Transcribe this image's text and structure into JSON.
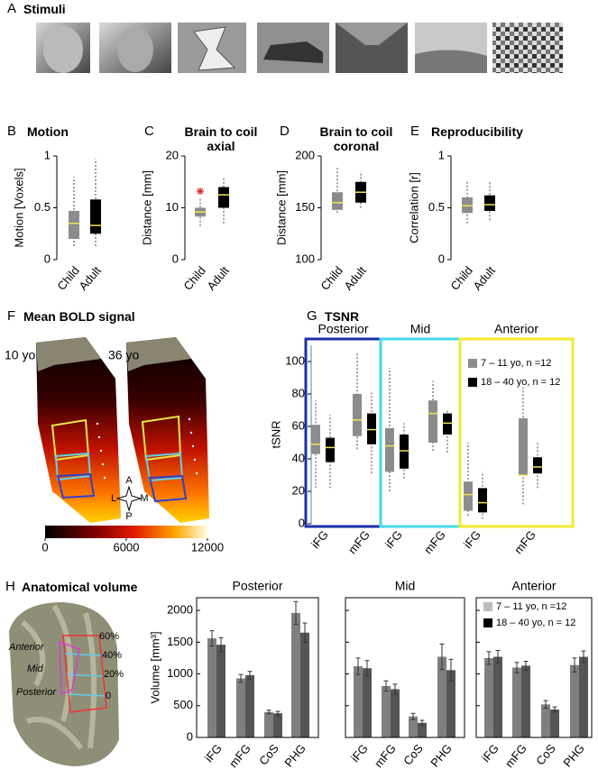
{
  "figure_panels": [
    {
      "letter": "A",
      "title": "Stimuli"
    },
    {
      "letter": "F",
      "title": "Mean BOLD signal",
      "brain_labels": [
        "10 yo",
        "36 yo"
      ],
      "compass": [
        "A",
        "L",
        "M",
        "P"
      ],
      "colorbar": {
        "lim": [
          0,
          12000
        ],
        "ticks": [
          0,
          6000,
          12000
        ]
      }
    },
    {
      "letter": "H",
      "title": "Anatomical volume",
      "region_labels": [
        "Anterior",
        "Mid",
        "Posterior"
      ],
      "level_labels": [
        "60%",
        "40%",
        "20%",
        "0"
      ]
    }
  ],
  "chart_data": [
    {
      "type": "box",
      "panel": "B",
      "title": "Motion",
      "ylabel": "Motion [Voxels]",
      "categories": [
        "Child",
        "Adult"
      ],
      "colors": [
        "#8c8c8c",
        "#000000"
      ],
      "median_color": "#f2e34a",
      "ylim": [
        0,
        1
      ],
      "yticks": [
        0,
        0.5,
        1
      ],
      "values": [
        {
          "low": 0.13,
          "q1": 0.2,
          "median": 0.35,
          "q3": 0.47,
          "high": 0.8
        },
        {
          "low": 0.13,
          "q1": 0.25,
          "median": 0.33,
          "q3": 0.58,
          "high": 0.97
        }
      ]
    },
    {
      "type": "box",
      "panel": "C",
      "title": "Brain to coil axial",
      "ylabel": "Distance [mm]",
      "categories": [
        "Child",
        "Adult"
      ],
      "colors": [
        "#8c8c8c",
        "#000000"
      ],
      "median_color": "#f2e34a",
      "outlier_color": "#d62728",
      "ylim": [
        0,
        20
      ],
      "yticks": [
        0,
        10,
        20
      ],
      "values": [
        {
          "low": 6.5,
          "q1": 8.3,
          "median": 9.2,
          "q3": 10,
          "high": 12
        },
        {
          "low": 7,
          "q1": 10,
          "median": 12.5,
          "q3": 14,
          "high": 16
        }
      ],
      "outliers": [
        [
          13.2
        ],
        []
      ]
    },
    {
      "type": "box",
      "panel": "D",
      "title": "Brain to coil coronal",
      "ylabel": "Distance [mm]",
      "categories": [
        "Child",
        "Adult"
      ],
      "colors": [
        "#8c8c8c",
        "#000000"
      ],
      "median_color": "#f2e34a",
      "ylim": [
        100,
        200
      ],
      "yticks": [
        100,
        150,
        200
      ],
      "values": [
        {
          "low": 145,
          "q1": 148,
          "median": 155,
          "q3": 165,
          "high": 190
        },
        {
          "low": 150,
          "q1": 155,
          "median": 165,
          "q3": 175,
          "high": 185
        }
      ]
    },
    {
      "type": "box",
      "panel": "E",
      "title": "Reproducibility",
      "ylabel": "Correlation [r]",
      "categories": [
        "Child",
        "Adult"
      ],
      "colors": [
        "#8c8c8c",
        "#000000"
      ],
      "median_color": "#f2e34a",
      "ylim": [
        0,
        1
      ],
      "yticks": [
        0,
        0.5,
        1
      ],
      "values": [
        {
          "low": 0.35,
          "q1": 0.45,
          "median": 0.52,
          "q3": 0.6,
          "high": 0.75
        },
        {
          "low": 0.38,
          "q1": 0.47,
          "median": 0.53,
          "q3": 0.62,
          "high": 0.75
        }
      ]
    },
    {
      "type": "box",
      "panel": "G",
      "title": "TSNR",
      "ylabel": "tSNR",
      "categories": [
        "iFG",
        "mFG",
        "iFG",
        "mFG",
        "iFG",
        "mFG"
      ],
      "groups": [
        {
          "name": "Posterior",
          "color": "#1c2fa8"
        },
        {
          "name": "Mid",
          "color": "#46d9ef"
        },
        {
          "name": "Anterior",
          "color": "#f3ea2e"
        }
      ],
      "median_color": "#f2e34a",
      "ylim": [
        0,
        110
      ],
      "yticks": [
        0,
        20,
        40,
        60,
        80,
        100
      ],
      "legend": true,
      "series": [
        {
          "name": "7 – 11 yo, n =12",
          "color": "#8c8c8c",
          "values": [
            {
              "low": 22,
              "q1": 43,
              "median": 49,
              "q3": 61,
              "high": 76
            },
            {
              "low": 46,
              "q1": 54,
              "median": 64,
              "q3": 80,
              "high": 106
            },
            {
              "low": 20,
              "q1": 32,
              "median": 48,
              "q3": 59,
              "high": 96
            },
            {
              "low": 45,
              "q1": 50,
              "median": 68,
              "q3": 76,
              "high": 88
            },
            {
              "low": 5,
              "q1": 8,
              "median": 18,
              "q3": 26,
              "high": 50
            },
            {
              "low": 12,
              "q1": 30,
              "median": 30,
              "q3": 65,
              "high": 84
            }
          ]
        },
        {
          "name": "18 – 40 yo, n = 12",
          "color": "#000000",
          "values": [
            {
              "low": 22,
              "q1": 38,
              "median": 47,
              "q3": 53,
              "high": 67
            },
            {
              "low": 31,
              "q1": 49,
              "median": 58,
              "q3": 68,
              "high": 82
            },
            {
              "low": 28,
              "q1": 34,
              "median": 45,
              "q3": 55,
              "high": 62
            },
            {
              "low": 44,
              "q1": 55,
              "median": 62,
              "q3": 68,
              "high": 70
            },
            {
              "low": 3,
              "q1": 7,
              "median": 13,
              "q3": 22,
              "high": 32
            },
            {
              "low": 22,
              "q1": 31,
              "median": 35,
              "q3": 41,
              "high": 50
            }
          ]
        }
      ]
    },
    {
      "type": "bar",
      "title": "Posterior",
      "ylabel": "Volume [mm³]",
      "categories": [
        "iFG",
        "mFG",
        "CoS",
        "PHG"
      ],
      "ylim": [
        0,
        2200
      ],
      "yticks": [
        0,
        500,
        1000,
        1500,
        2000
      ],
      "series": [
        {
          "color": "#7f7f7f",
          "values": [
            1560,
            930,
            400,
            1960
          ],
          "errors": [
            120,
            60,
            30,
            180
          ]
        },
        {
          "color": "#555555",
          "values": [
            1460,
            980,
            380,
            1650
          ],
          "errors": [
            110,
            60,
            30,
            150
          ]
        }
      ]
    },
    {
      "type": "bar",
      "title": "Mid",
      "categories": [
        "iFG",
        "mFG",
        "CoS",
        "PHG"
      ],
      "show_tick_labels": false,
      "ylim": [
        0,
        2200
      ],
      "yticks": [
        0,
        500,
        1000,
        1500,
        2000
      ],
      "series": [
        {
          "color": "#7f7f7f",
          "values": [
            1120,
            810,
            330,
            1270
          ],
          "errors": [
            130,
            80,
            50,
            200
          ]
        },
        {
          "color": "#555555",
          "values": [
            1090,
            760,
            230,
            1060
          ],
          "errors": [
            120,
            80,
            40,
            170
          ]
        }
      ]
    },
    {
      "type": "bar",
      "title": "Anterior",
      "categories": [
        "iFG",
        "mFG",
        "CoS",
        "PHG"
      ],
      "show_tick_labels": false,
      "legend": true,
      "ylim": [
        0,
        2200
      ],
      "yticks": [
        0,
        500,
        1000,
        1500,
        2000
      ],
      "series": [
        {
          "name": "7 – 11 yo, n =12",
          "color": "#7f7f7f",
          "values": [
            1250,
            1100,
            520,
            1140
          ],
          "errors": [
            100,
            80,
            60,
            110
          ]
        },
        {
          "name": "18 – 40 yo, n = 12",
          "color": "#555555",
          "values": [
            1270,
            1130,
            440,
            1270
          ],
          "errors": [
            100,
            70,
            40,
            90
          ]
        }
      ]
    }
  ]
}
